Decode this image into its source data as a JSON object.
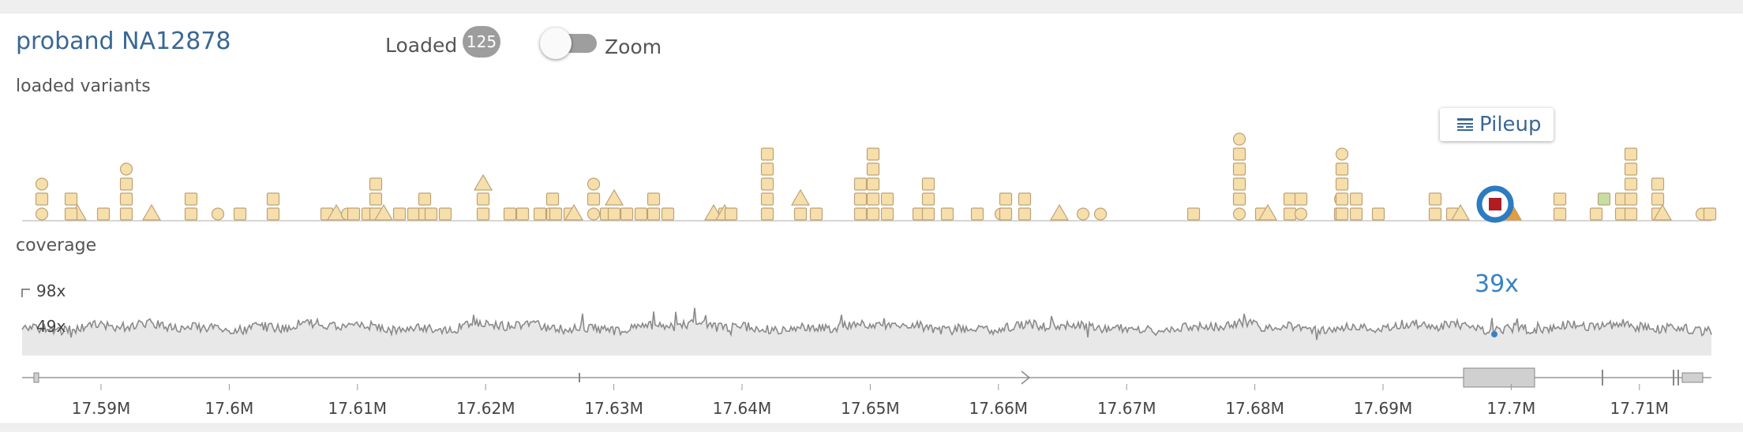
{
  "header": {
    "sample_title": "proband NA12878",
    "loaded_label": "Loaded",
    "loaded_count": "125",
    "zoom_label": "Zoom",
    "zoom_enabled": false
  },
  "variants": {
    "section_label": "loaded variants",
    "pileup_label": "Pileup",
    "pileup_icon": "pileup-icon",
    "colors": {
      "default": "#f7dfab",
      "outline": "#bda275",
      "selected": "#b01c24",
      "ring": "#2d7bc0",
      "orange": "#e89a3c",
      "green": "#c6dda3"
    }
  },
  "coverage": {
    "section_label": "coverage",
    "max_label": "98x",
    "mid_label": "49x",
    "selected_value": "39x"
  },
  "axis": {
    "ticks": [
      "17.59M",
      "17.6M",
      "17.61M",
      "17.62M",
      "17.63M",
      "17.64M",
      "17.65M",
      "17.66M",
      "17.67M",
      "17.68M",
      "17.69M",
      "17.7M",
      "17.71M"
    ]
  }
}
